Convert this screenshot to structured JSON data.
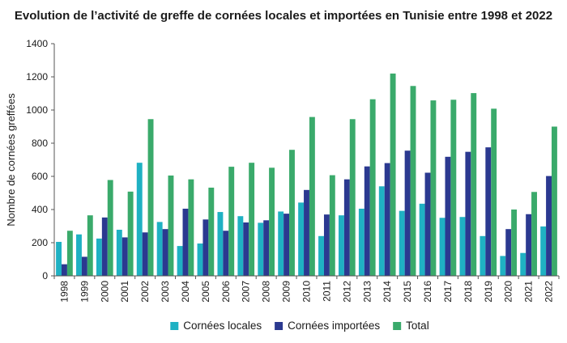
{
  "chart_data": {
    "type": "bar",
    "title": "Evolution de l’activité de greffe de cornées locales et importées en Tunisie entre 1998 et 2022",
    "xlabel": "",
    "ylabel": "Nombre de cornées greffées",
    "ylim": [
      0,
      1400
    ],
    "yticks": [
      0,
      200,
      400,
      600,
      800,
      1000,
      1200,
      1400
    ],
    "grid": false,
    "legend_position": "bottom",
    "categories": [
      "1998",
      "1999",
      "2000",
      "2001",
      "2002",
      "2003",
      "2004",
      "2005",
      "2006",
      "2007",
      "2008",
      "2009",
      "2010",
      "2011",
      "2012",
      "2013",
      "2014",
      "2015",
      "2016",
      "2017",
      "2018",
      "2019",
      "2020",
      "2021",
      "2022"
    ],
    "series": [
      {
        "name": "Cornées locales",
        "color": "#1fb1c3",
        "values": [
          205,
          250,
          225,
          278,
          682,
          325,
          180,
          195,
          385,
          360,
          320,
          388,
          442,
          240,
          365,
          405,
          540,
          392,
          435,
          350,
          355,
          240,
          120,
          138,
          298
        ]
      },
      {
        "name": "Cornées importées",
        "color": "#2b3990",
        "values": [
          70,
          115,
          352,
          232,
          262,
          282,
          405,
          340,
          272,
          322,
          335,
          375,
          518,
          370,
          582,
          660,
          680,
          755,
          622,
          718,
          748,
          775,
          282,
          372,
          602
        ]
      },
      {
        "name": "Total",
        "color": "#3aaa6b",
        "values": [
          272,
          365,
          578,
          508,
          945,
          605,
          582,
          532,
          658,
          682,
          652,
          760,
          958,
          607,
          945,
          1065,
          1220,
          1145,
          1058,
          1062,
          1102,
          1008,
          400,
          506,
          900
        ]
      }
    ]
  }
}
